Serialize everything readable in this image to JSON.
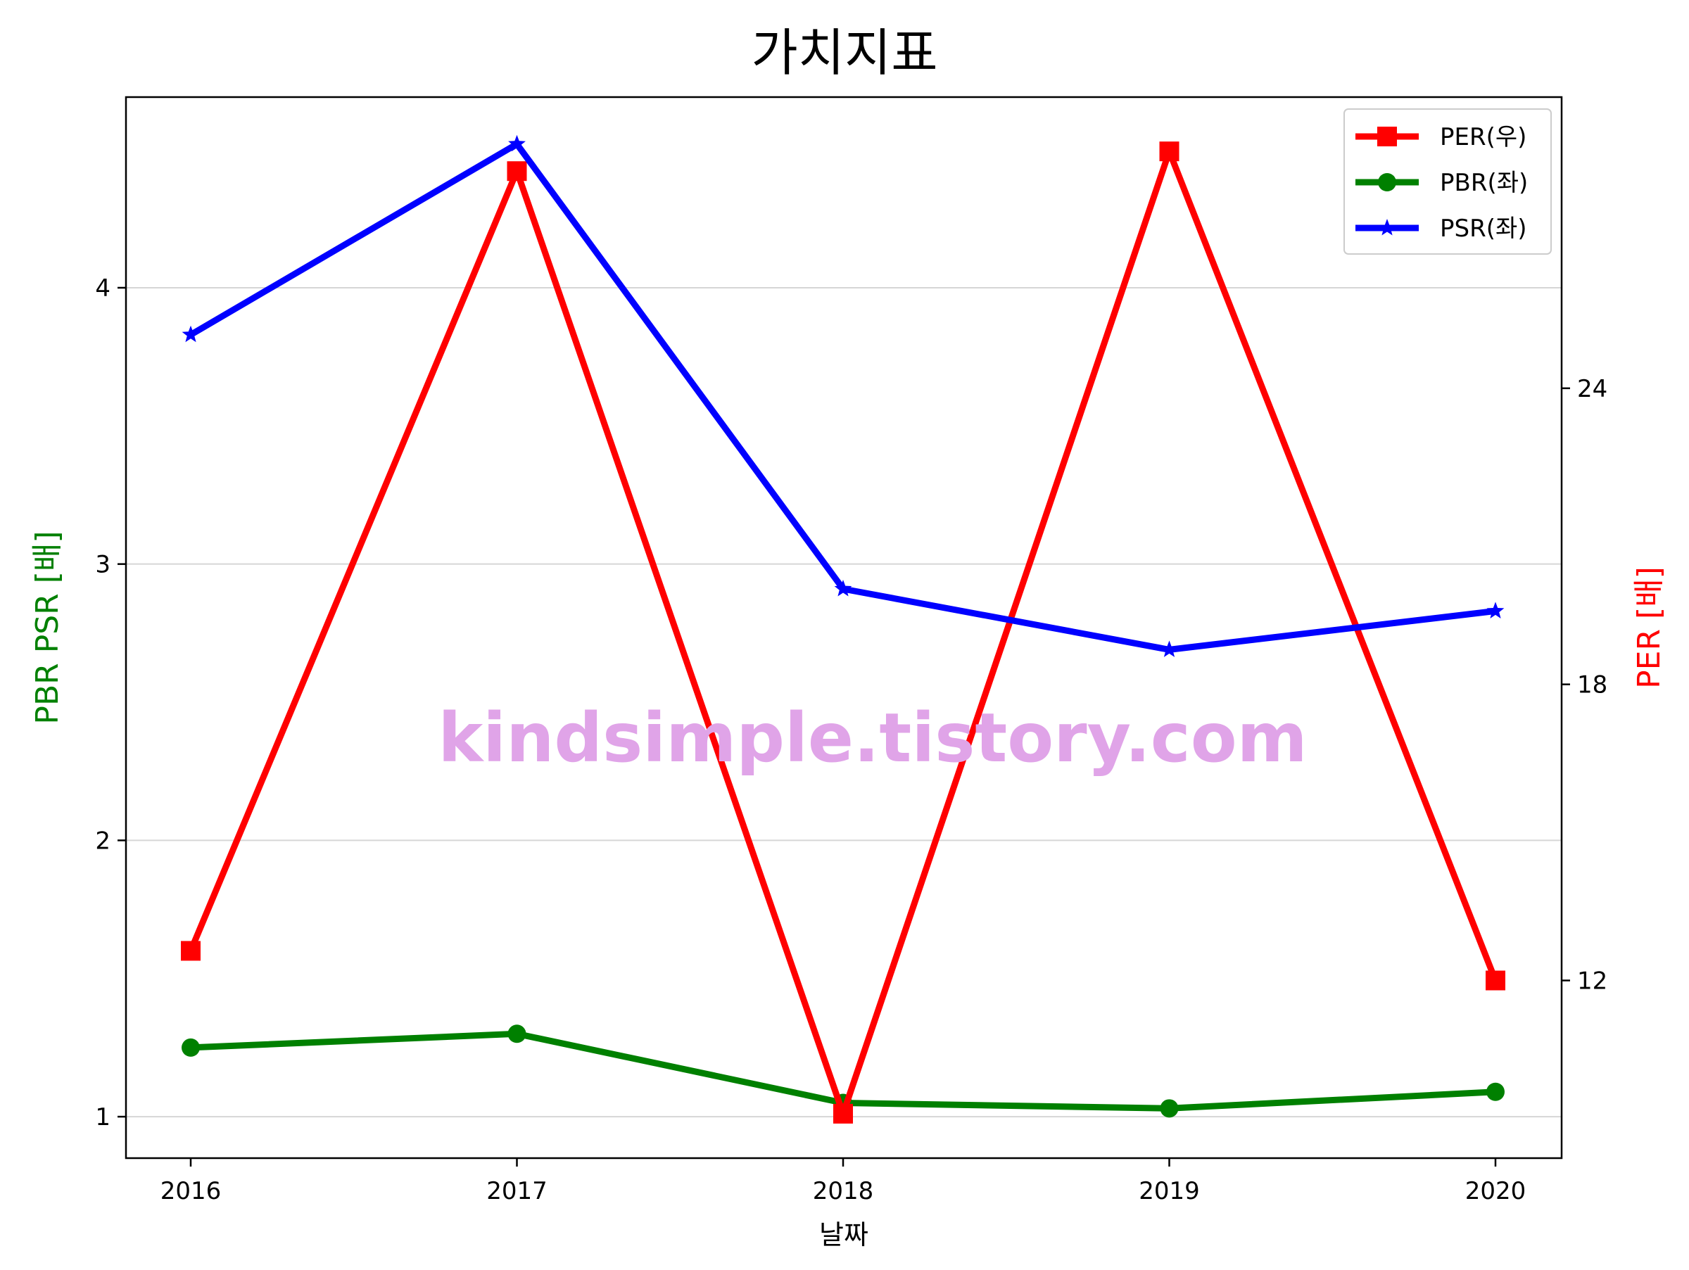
{
  "chart_data": {
    "type": "line",
    "title": "가치지표",
    "xlabel": "날짜",
    "ylabel_left": "PBR PSR [배]",
    "ylabel_right": "PER [배]",
    "categories": [
      "2016",
      "2017",
      "2018",
      "2019",
      "2020"
    ],
    "left_axis": {
      "ylim": [
        0.85,
        4.69
      ],
      "ticks": [
        1,
        2,
        3,
        4
      ],
      "grid": true
    },
    "right_axis": {
      "ylim": [
        8.4,
        29.9
      ],
      "ticks": [
        12,
        18,
        24
      ]
    },
    "series": [
      {
        "name": "PER(우)",
        "axis": "right",
        "color": "#ff0000",
        "marker": "square",
        "values": [
          12.6,
          28.4,
          9.3,
          28.8,
          12.0
        ]
      },
      {
        "name": "PBR(좌)",
        "axis": "left",
        "color": "#008000",
        "marker": "circle",
        "values": [
          1.25,
          1.3,
          1.05,
          1.03,
          1.09
        ]
      },
      {
        "name": "PSR(좌)",
        "axis": "left",
        "color": "#0000ff",
        "marker": "star",
        "values": [
          3.83,
          4.52,
          2.91,
          2.69,
          2.83
        ]
      }
    ],
    "legend_position": "top-right",
    "watermark": "kindsimple.tistory.com",
    "colors": {
      "left_label": "#008000",
      "right_label": "#ff0000",
      "watermark": "#e0a4e8"
    }
  }
}
